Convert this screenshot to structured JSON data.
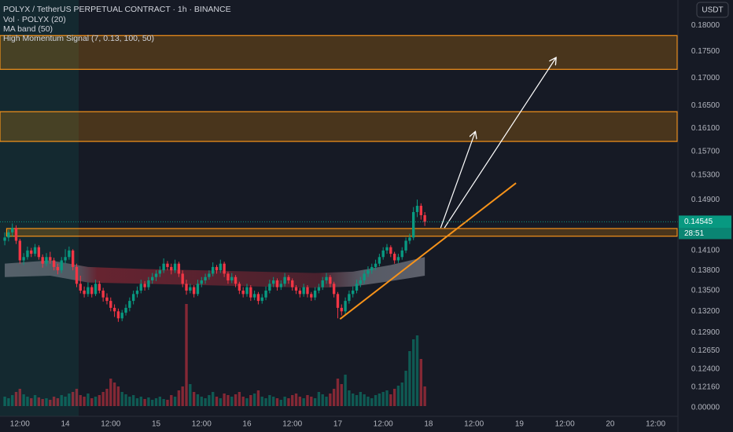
{
  "chart_data": {
    "type": "candlestick",
    "title": "POLYX / TetherUS PERPETUAL CONTRACT · 1h · BINANCE",
    "indicators": [
      "Vol · POLYX (20)",
      "MA band (50)",
      "High Momentum Signal (7, 0.13, 100, 50)"
    ],
    "currency": "USDT",
    "log_scale": true,
    "grid": false,
    "up_color": "#089981",
    "down_color": "#f23645",
    "xlim": [
      6.74,
      185.9
    ],
    "ylim": [
      0.1178,
      0.185
    ],
    "yticks": [
      {
        "value": 0.18,
        "label": "0.18000"
      },
      {
        "value": 0.175,
        "label": "0.17500"
      },
      {
        "value": 0.17,
        "label": "0.17000"
      },
      {
        "value": 0.165,
        "label": "0.16500"
      },
      {
        "value": 0.161,
        "label": "0.16100"
      },
      {
        "value": 0.157,
        "label": "0.15700"
      },
      {
        "value": 0.153,
        "label": "0.15300"
      },
      {
        "value": 0.149,
        "label": "0.14900"
      },
      {
        "value": 0.141,
        "label": "0.14100"
      },
      {
        "value": 0.138,
        "label": "0.13800"
      },
      {
        "value": 0.135,
        "label": "0.13500"
      },
      {
        "value": 0.132,
        "label": "0.13200"
      },
      {
        "value": 0.129,
        "label": "0.12900"
      },
      {
        "value": 0.1265,
        "label": "0.12650"
      },
      {
        "value": 0.124,
        "label": "0.12400"
      },
      {
        "value": 0.1216,
        "label": "0.12160"
      }
    ],
    "volume_ticks": [
      {
        "value": 0,
        "label": "0.00000"
      }
    ],
    "xticks": [
      {
        "value": 12,
        "label": "12:00"
      },
      {
        "value": 24,
        "label": "14"
      },
      {
        "value": 36,
        "label": "12:00"
      },
      {
        "value": 48,
        "label": "15"
      },
      {
        "value": 60,
        "label": "12:00"
      },
      {
        "value": 72,
        "label": "16"
      },
      {
        "value": 84,
        "label": "12:00"
      },
      {
        "value": 96,
        "label": "17"
      },
      {
        "value": 108,
        "label": "12:00"
      },
      {
        "value": 120,
        "label": "18"
      },
      {
        "value": 132,
        "label": "12:00"
      },
      {
        "value": 144,
        "label": "19"
      },
      {
        "value": 156,
        "label": "12:00"
      },
      {
        "value": 168,
        "label": "20"
      },
      {
        "value": 180,
        "label": "12:00"
      }
    ],
    "last_price": 0.14545,
    "countdown": "28:51",
    "x": [
      8,
      9,
      10,
      11,
      12,
      13,
      14,
      15,
      16,
      17,
      18,
      19,
      20,
      21,
      22,
      23,
      24,
      25,
      26,
      27,
      28,
      29,
      30,
      31,
      32,
      33,
      34,
      35,
      36,
      37,
      38,
      39,
      40,
      41,
      42,
      43,
      44,
      45,
      46,
      47,
      48,
      49,
      50,
      51,
      52,
      53,
      54,
      55,
      56,
      57,
      58,
      59,
      60,
      61,
      62,
      63,
      64,
      65,
      66,
      67,
      68,
      69,
      70,
      71,
      72,
      73,
      74,
      75,
      76,
      77,
      78,
      79,
      80,
      81,
      82,
      83,
      84,
      85,
      86,
      87,
      88,
      89,
      90,
      91,
      92,
      93,
      94,
      95,
      96,
      97,
      98,
      99,
      100,
      101,
      102,
      103,
      104,
      105,
      106,
      107,
      108,
      109,
      110,
      111,
      112,
      113,
      114,
      115,
      116,
      117,
      118,
      119
    ],
    "ohlc": [
      [
        0.1425,
        0.1438,
        0.1418,
        0.143
      ],
      [
        0.143,
        0.1442,
        0.1424,
        0.1438
      ],
      [
        0.1438,
        0.1452,
        0.1432,
        0.1445
      ],
      [
        0.1445,
        0.1449,
        0.142,
        0.1425
      ],
      [
        0.1425,
        0.1428,
        0.139,
        0.1395
      ],
      [
        0.1395,
        0.1406,
        0.1388,
        0.14
      ],
      [
        0.14,
        0.1416,
        0.1396,
        0.141
      ],
      [
        0.141,
        0.1414,
        0.14,
        0.1405
      ],
      [
        0.1405,
        0.142,
        0.1401,
        0.1415
      ],
      [
        0.1415,
        0.1418,
        0.1396,
        0.14
      ],
      [
        0.14,
        0.1404,
        0.1384,
        0.139
      ],
      [
        0.139,
        0.1406,
        0.1386,
        0.14
      ],
      [
        0.14,
        0.1408,
        0.139,
        0.1395
      ],
      [
        0.1395,
        0.1399,
        0.138,
        0.1385
      ],
      [
        0.1385,
        0.139,
        0.1374,
        0.138
      ],
      [
        0.138,
        0.14,
        0.1376,
        0.1395
      ],
      [
        0.1395,
        0.1412,
        0.139,
        0.14
      ],
      [
        0.14,
        0.1416,
        0.1396,
        0.141
      ],
      [
        0.141,
        0.1412,
        0.138,
        0.1385
      ],
      [
        0.1385,
        0.139,
        0.1355,
        0.136
      ],
      [
        0.136,
        0.1372,
        0.1346,
        0.135
      ],
      [
        0.135,
        0.1356,
        0.134,
        0.1345
      ],
      [
        0.1345,
        0.1362,
        0.1341,
        0.1355
      ],
      [
        0.1355,
        0.1358,
        0.134,
        0.1345
      ],
      [
        0.1345,
        0.1366,
        0.1342,
        0.136
      ],
      [
        0.136,
        0.1364,
        0.1346,
        0.135
      ],
      [
        0.135,
        0.1354,
        0.1334,
        0.134
      ],
      [
        0.134,
        0.1346,
        0.133,
        0.1335
      ],
      [
        0.1335,
        0.134,
        0.132,
        0.1325
      ],
      [
        0.1325,
        0.133,
        0.1312,
        0.132
      ],
      [
        0.132,
        0.1324,
        0.1305,
        0.131
      ],
      [
        0.131,
        0.1322,
        0.1306,
        0.1318
      ],
      [
        0.1318,
        0.133,
        0.1314,
        0.1325
      ],
      [
        0.1325,
        0.134,
        0.132,
        0.1335
      ],
      [
        0.1335,
        0.135,
        0.133,
        0.1345
      ],
      [
        0.1345,
        0.1356,
        0.134,
        0.135
      ],
      [
        0.135,
        0.1366,
        0.1346,
        0.136
      ],
      [
        0.136,
        0.1364,
        0.135,
        0.1355
      ],
      [
        0.1355,
        0.137,
        0.1351,
        0.1365
      ],
      [
        0.1365,
        0.1376,
        0.136,
        0.137
      ],
      [
        0.137,
        0.138,
        0.1364,
        0.1375
      ],
      [
        0.1375,
        0.1386,
        0.137,
        0.138
      ],
      [
        0.138,
        0.1398,
        0.1376,
        0.139
      ],
      [
        0.139,
        0.1394,
        0.138,
        0.1385
      ],
      [
        0.1385,
        0.139,
        0.1374,
        0.138
      ],
      [
        0.138,
        0.1396,
        0.1376,
        0.139
      ],
      [
        0.139,
        0.1393,
        0.137,
        0.1375
      ],
      [
        0.1375,
        0.138,
        0.1355,
        0.136
      ],
      [
        0.136,
        0.1366,
        0.1344,
        0.135
      ],
      [
        0.135,
        0.136,
        0.1346,
        0.1355
      ],
      [
        0.1355,
        0.1358,
        0.134,
        0.1345
      ],
      [
        0.1345,
        0.1366,
        0.1342,
        0.136
      ],
      [
        0.136,
        0.137,
        0.1355,
        0.1365
      ],
      [
        0.1365,
        0.1375,
        0.136,
        0.137
      ],
      [
        0.137,
        0.138,
        0.1366,
        0.1375
      ],
      [
        0.1375,
        0.1392,
        0.1371,
        0.1385
      ],
      [
        0.1385,
        0.1388,
        0.1375,
        0.138
      ],
      [
        0.138,
        0.1396,
        0.1376,
        0.139
      ],
      [
        0.139,
        0.1393,
        0.137,
        0.1375
      ],
      [
        0.1375,
        0.1378,
        0.136,
        0.1365
      ],
      [
        0.1365,
        0.1376,
        0.1361,
        0.137
      ],
      [
        0.137,
        0.1373,
        0.1355,
        0.136
      ],
      [
        0.136,
        0.1363,
        0.1345,
        0.135
      ],
      [
        0.135,
        0.1355,
        0.134,
        0.1345
      ],
      [
        0.1345,
        0.136,
        0.1341,
        0.1355
      ],
      [
        0.1355,
        0.1358,
        0.1335,
        0.134
      ],
      [
        0.134,
        0.135,
        0.1336,
        0.1345
      ],
      [
        0.1345,
        0.1348,
        0.133,
        0.1335
      ],
      [
        0.1335,
        0.1345,
        0.1331,
        0.134
      ],
      [
        0.134,
        0.1356,
        0.1336,
        0.135
      ],
      [
        0.135,
        0.1366,
        0.1346,
        0.136
      ],
      [
        0.136,
        0.137,
        0.1355,
        0.1365
      ],
      [
        0.1365,
        0.1368,
        0.135,
        0.1355
      ],
      [
        0.1355,
        0.1365,
        0.1351,
        0.136
      ],
      [
        0.136,
        0.1376,
        0.1356,
        0.137
      ],
      [
        0.137,
        0.1373,
        0.136,
        0.1365
      ],
      [
        0.1365,
        0.1368,
        0.135,
        0.1355
      ],
      [
        0.1355,
        0.1358,
        0.1345,
        0.135
      ],
      [
        0.135,
        0.1354,
        0.134,
        0.1345
      ],
      [
        0.1345,
        0.136,
        0.1341,
        0.1355
      ],
      [
        0.1355,
        0.1358,
        0.134,
        0.1345
      ],
      [
        0.1345,
        0.1348,
        0.1335,
        0.134
      ],
      [
        0.134,
        0.1355,
        0.1336,
        0.135
      ],
      [
        0.135,
        0.136,
        0.1346,
        0.1355
      ],
      [
        0.1355,
        0.137,
        0.1351,
        0.1365
      ],
      [
        0.1365,
        0.1376,
        0.136,
        0.137
      ],
      [
        0.137,
        0.1373,
        0.1355,
        0.136
      ],
      [
        0.136,
        0.1363,
        0.134,
        0.1345
      ],
      [
        0.1345,
        0.1348,
        0.131,
        0.1325
      ],
      [
        0.1325,
        0.133,
        0.1314,
        0.132
      ],
      [
        0.132,
        0.134,
        0.1316,
        0.1335
      ],
      [
        0.1335,
        0.135,
        0.1331,
        0.1345
      ],
      [
        0.1345,
        0.1356,
        0.134,
        0.135
      ],
      [
        0.135,
        0.1366,
        0.1346,
        0.136
      ],
      [
        0.136,
        0.137,
        0.1355,
        0.1365
      ],
      [
        0.1365,
        0.138,
        0.136,
        0.1375
      ],
      [
        0.1375,
        0.1386,
        0.137,
        0.138
      ],
      [
        0.138,
        0.139,
        0.1375,
        0.1385
      ],
      [
        0.1385,
        0.1396,
        0.138,
        0.139
      ],
      [
        0.139,
        0.1405,
        0.1386,
        0.14
      ],
      [
        0.14,
        0.1415,
        0.1396,
        0.141
      ],
      [
        0.141,
        0.142,
        0.1405,
        0.1415
      ],
      [
        0.1415,
        0.1418,
        0.14,
        0.1405
      ],
      [
        0.1405,
        0.1408,
        0.139,
        0.1395
      ],
      [
        0.1395,
        0.1405,
        0.1391,
        0.14
      ],
      [
        0.14,
        0.1415,
        0.1396,
        0.141
      ],
      [
        0.141,
        0.143,
        0.1406,
        0.1425
      ],
      [
        0.1425,
        0.1436,
        0.142,
        0.143
      ],
      [
        0.143,
        0.1478,
        0.1426,
        0.147
      ],
      [
        0.147,
        0.149,
        0.1462,
        0.148
      ],
      [
        0.148,
        0.1484,
        0.1458,
        0.1465
      ],
      [
        0.1465,
        0.147,
        0.1448,
        0.14545
      ]
    ],
    "volume": [
      12,
      10,
      14,
      18,
      22,
      15,
      12,
      10,
      14,
      11,
      9,
      10,
      8,
      12,
      10,
      14,
      12,
      16,
      18,
      22,
      14,
      12,
      16,
      10,
      12,
      14,
      18,
      22,
      35,
      30,
      25,
      18,
      15,
      12,
      14,
      10,
      12,
      9,
      11,
      8,
      10,
      12,
      9,
      8,
      14,
      12,
      20,
      25,
      130,
      28,
      18,
      15,
      12,
      10,
      14,
      18,
      12,
      10,
      16,
      14,
      12,
      15,
      18,
      12,
      10,
      14,
      16,
      20,
      12,
      10,
      14,
      12,
      10,
      8,
      12,
      10,
      14,
      16,
      12,
      10,
      14,
      12,
      10,
      18,
      15,
      12,
      16,
      22,
      35,
      28,
      40,
      20,
      16,
      14,
      18,
      15,
      12,
      10,
      14,
      16,
      18,
      20,
      15,
      22,
      26,
      30,
      45,
      70,
      85,
      90,
      60,
      25
    ],
    "ma_band": {
      "x": [
        8,
        20,
        30,
        45,
        60,
        75,
        90,
        100,
        110,
        119
      ],
      "upper": [
        0.139,
        0.1395,
        0.1385,
        0.1382,
        0.138,
        0.1378,
        0.1376,
        0.1378,
        0.1388,
        0.14
      ],
      "lower": [
        0.137,
        0.1372,
        0.1362,
        0.136,
        0.1358,
        0.1356,
        0.1354,
        0.1356,
        0.1364,
        0.1372
      ]
    },
    "zones": [
      {
        "x": [
          6.74,
          185.7
        ],
        "y": [
          0.178,
          0.1716
        ]
      },
      {
        "x": [
          6.74,
          185.7
        ],
        "y": [
          0.1639,
          0.1587
        ]
      },
      {
        "x": [
          8.5,
          185.7
        ],
        "y": [
          0.1444,
          0.1432
        ]
      }
    ],
    "lines": [
      {
        "x": [
          96.6,
          143.1
        ],
        "y": [
          0.1309,
          0.1517
        ],
        "color": "#f7931a"
      }
    ],
    "arrows": [
      {
        "x": [
          124.2,
          153.6
        ],
        "y": [
          0.1445,
          0.1737
        ],
        "color": "#ffffff"
      },
      {
        "x": [
          123.2,
          132.3
        ],
        "y": [
          0.1445,
          0.1603
        ],
        "color": "#ffffff"
      }
    ]
  }
}
